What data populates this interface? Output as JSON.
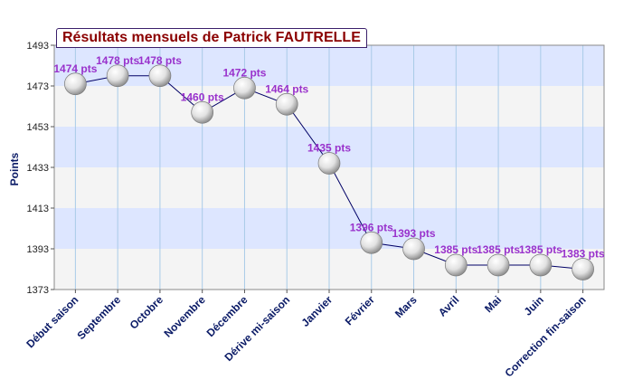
{
  "chart_data": {
    "type": "line",
    "title": "Résultats mensuels de Patrick FAUTRELLE",
    "ylabel": "Points",
    "xlabel": "",
    "ylim": [
      1373,
      1493
    ],
    "yticks": [
      "1373",
      "1393",
      "1413",
      "1433",
      "1453",
      "1473",
      "1493"
    ],
    "grid": true,
    "legend": "none",
    "categories": [
      "Début saison",
      "Septembre",
      "Octobre",
      "Novembre",
      "Décembre",
      "Dérive mi-saison",
      "Janvier",
      "Février",
      "Mars",
      "Avril",
      "Mai",
      "Juin",
      "Correction fin-saison"
    ],
    "series": [
      {
        "values": [
          1474,
          1478,
          1478,
          1460,
          1472,
          1464,
          1435,
          1396,
          1393,
          1385,
          1385,
          1385,
          1383
        ],
        "labels": [
          "1474 pts",
          "1478 pts",
          "1478 pts",
          "1460 pts",
          "1472 pts",
          "1464 pts",
          "1435 pts",
          "1396 pts",
          "1393 pts",
          "1385 pts",
          "1385 pts",
          "1385 pts",
          "1383 pts"
        ]
      }
    ],
    "colors": {
      "band_blue": "#dde6ff",
      "band_grey": "#f4f4f4",
      "line": "#000066",
      "data_label": "#9932cc",
      "axis_text": "#0a1a66",
      "title_text": "#8b0000"
    }
  }
}
